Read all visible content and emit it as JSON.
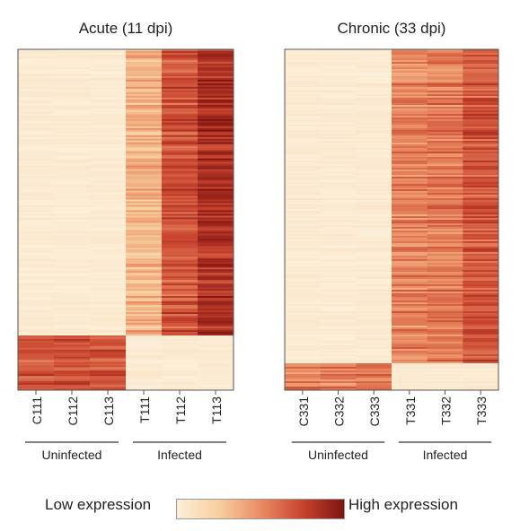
{
  "legend": {
    "low_label": "Low expression",
    "high_label": "High expression",
    "colors": [
      "#fcefd9",
      "#f7cf9f",
      "#ea8c63",
      "#c8432e",
      "#7f1410"
    ]
  },
  "chart_data": [
    {
      "type": "heatmap",
      "title": "Acute (11 dpi)",
      "columns": [
        "C111",
        "C112",
        "C113",
        "T111",
        "T112",
        "T113"
      ],
      "groups": [
        {
          "name": "Uninfected",
          "columns": [
            "C111",
            "C112",
            "C113"
          ]
        },
        {
          "name": "Infected",
          "columns": [
            "T111",
            "T112",
            "T113"
          ]
        }
      ],
      "scale": "relative expression, 0 = low, 1 = high",
      "row_blocks": [
        {
          "genes_fraction": 0.84,
          "description": "up in infected",
          "mean_expression": [
            0.03,
            0.03,
            0.03,
            0.35,
            0.7,
            0.85
          ]
        },
        {
          "genes_fraction": 0.16,
          "description": "down in infected",
          "mean_expression": [
            0.68,
            0.7,
            0.68,
            0.03,
            0.03,
            0.03
          ]
        }
      ]
    },
    {
      "type": "heatmap",
      "title": "Chronic (33 dpi)",
      "columns": [
        "C331",
        "C332",
        "C333",
        "T331",
        "T332",
        "T333"
      ],
      "groups": [
        {
          "name": "Uninfected",
          "columns": [
            "C331",
            "C332",
            "C333"
          ]
        },
        {
          "name": "Infected",
          "columns": [
            "T331",
            "T332",
            "T333"
          ]
        }
      ],
      "scale": "relative expression, 0 = low, 1 = high",
      "row_blocks": [
        {
          "genes_fraction": 0.92,
          "description": "up in infected",
          "mean_expression": [
            0.03,
            0.03,
            0.03,
            0.52,
            0.55,
            0.68
          ]
        },
        {
          "genes_fraction": 0.08,
          "description": "down in infected",
          "mean_expression": [
            0.52,
            0.55,
            0.58,
            0.03,
            0.03,
            0.03
          ]
        }
      ]
    }
  ]
}
